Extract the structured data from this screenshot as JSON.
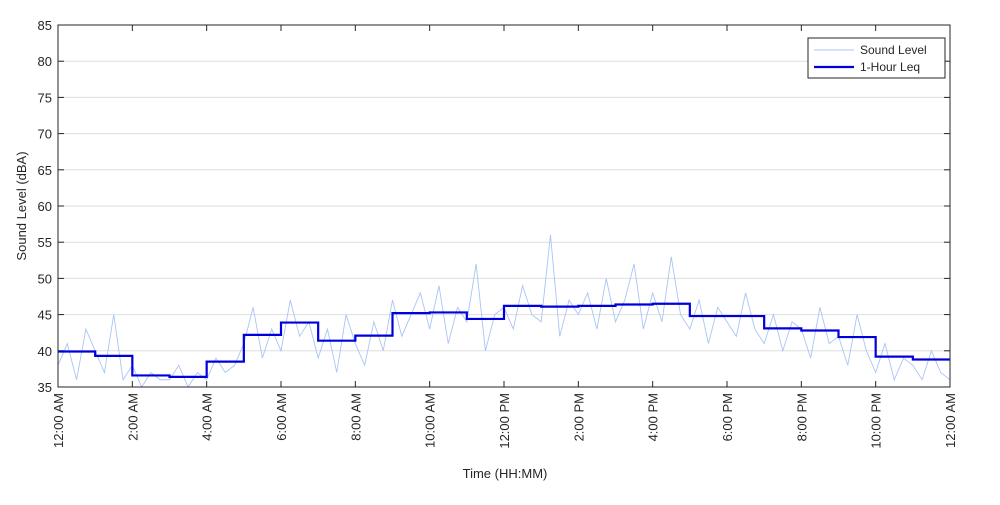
{
  "chart_data": {
    "type": "line",
    "xlabel": "Time (HH:MM)",
    "ylabel": "Sound Level (dBA)",
    "xlim": [
      0,
      24
    ],
    "ylim": [
      35,
      85
    ],
    "xticks": [
      {
        "value": 0,
        "label": "12:00 AM"
      },
      {
        "value": 2,
        "label": "2:00 AM"
      },
      {
        "value": 4,
        "label": "4:00 AM"
      },
      {
        "value": 6,
        "label": "6:00 AM"
      },
      {
        "value": 8,
        "label": "8:00 AM"
      },
      {
        "value": 10,
        "label": "10:00 AM"
      },
      {
        "value": 12,
        "label": "12:00 PM"
      },
      {
        "value": 14,
        "label": "2:00 PM"
      },
      {
        "value": 16,
        "label": "4:00 PM"
      },
      {
        "value": 18,
        "label": "6:00 PM"
      },
      {
        "value": 20,
        "label": "8:00 PM"
      },
      {
        "value": 22,
        "label": "10:00 PM"
      },
      {
        "value": 24,
        "label": "12:00 AM"
      }
    ],
    "yticks": [
      35,
      40,
      45,
      50,
      55,
      60,
      65,
      70,
      75,
      80,
      85
    ],
    "grid": true,
    "legend": "upper right",
    "series": [
      {
        "name": "Sound Level",
        "color": "#a9c4f5",
        "style": "line",
        "x": [
          0,
          0.25,
          0.5,
          0.75,
          1,
          1.25,
          1.5,
          1.75,
          2,
          2.25,
          2.5,
          2.75,
          3,
          3.25,
          3.5,
          3.75,
          4,
          4.25,
          4.5,
          4.75,
          5,
          5.25,
          5.5,
          5.75,
          6,
          6.25,
          6.5,
          6.75,
          7,
          7.25,
          7.5,
          7.75,
          8,
          8.25,
          8.5,
          8.75,
          9,
          9.25,
          9.5,
          9.75,
          10,
          10.25,
          10.5,
          10.75,
          11,
          11.25,
          11.5,
          11.75,
          12,
          12.25,
          12.5,
          12.75,
          13,
          13.25,
          13.5,
          13.75,
          14,
          14.25,
          14.5,
          14.75,
          15,
          15.25,
          15.5,
          15.75,
          16,
          16.25,
          16.5,
          16.75,
          17,
          17.25,
          17.5,
          17.75,
          18,
          18.25,
          18.5,
          18.75,
          19,
          19.25,
          19.5,
          19.75,
          20,
          20.25,
          20.5,
          20.75,
          21,
          21.25,
          21.5,
          21.75,
          22,
          22.25,
          22.5,
          22.75,
          23,
          23.25,
          23.5,
          23.75,
          24
        ],
        "values": [
          38,
          41,
          36,
          43,
          40,
          37,
          45,
          36,
          38,
          35,
          37,
          36,
          36,
          38,
          35,
          37,
          36,
          39,
          37,
          38,
          41,
          46,
          39,
          43,
          40,
          47,
          42,
          44,
          39,
          43,
          37,
          45,
          41,
          38,
          44,
          40,
          47,
          42,
          45,
          48,
          43,
          49,
          41,
          46,
          44,
          52,
          40,
          45,
          46,
          43,
          49,
          45,
          44,
          56,
          42,
          47,
          45,
          48,
          43,
          50,
          44,
          47,
          52,
          43,
          48,
          44,
          53,
          45,
          43,
          47,
          41,
          46,
          44,
          42,
          48,
          43,
          41,
          45,
          40,
          44,
          43,
          39,
          46,
          41,
          42,
          38,
          45,
          40,
          37,
          41,
          36,
          39,
          38,
          36,
          40,
          37,
          36
        ]
      },
      {
        "name": "1-Hour Leq",
        "color": "#0000dd",
        "style": "step",
        "x": [
          0,
          1,
          2,
          3,
          4,
          5,
          6,
          7,
          8,
          9,
          10,
          11,
          12,
          13,
          14,
          15,
          16,
          17,
          18,
          19,
          20,
          21,
          22,
          23
        ],
        "values": [
          39.9,
          39.3,
          36.6,
          36.4,
          38.5,
          42.2,
          43.9,
          41.4,
          42.1,
          45.2,
          45.3,
          44.4,
          46.2,
          46.1,
          46.2,
          46.4,
          46.5,
          44.8,
          44.8,
          43.1,
          42.8,
          41.9,
          39.2,
          38.8
        ]
      }
    ]
  }
}
